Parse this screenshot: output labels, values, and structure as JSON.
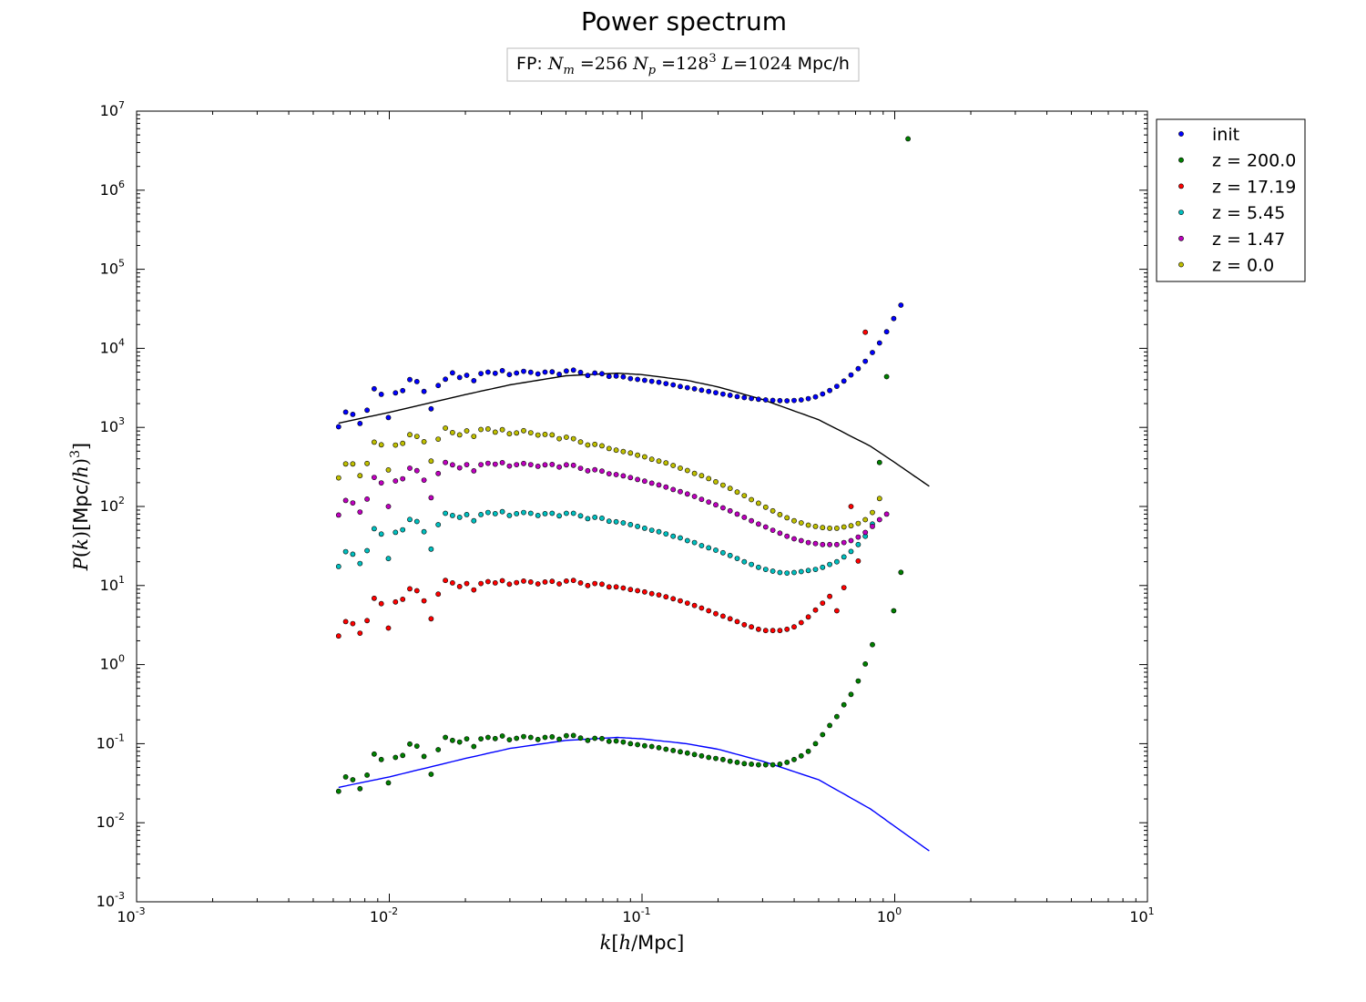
{
  "chart_data": {
    "type": "scatter",
    "title": "Power spectrum",
    "subtitle": {
      "prefix": "FP:",
      "nm_value": "256",
      "np_base": "128",
      "np_exp": "3",
      "L_value": "1024",
      "unit": "Mpc/h"
    },
    "xlabel": {
      "k": "k",
      "h": "h",
      "unit": "Mpc"
    },
    "ylabel": {
      "P": "P",
      "k": "k",
      "unit": "Mpc",
      "h": "h",
      "exp": "3"
    },
    "xscale": "log",
    "yscale": "log",
    "xlim": [
      0.001,
      10
    ],
    "ylim": [
      0.001,
      10000000
    ],
    "xticks": [
      {
        "base": "10",
        "exp": "-3",
        "value": 0.001
      },
      {
        "base": "10",
        "exp": "-2",
        "value": 0.01
      },
      {
        "base": "10",
        "exp": "-1",
        "value": 0.1
      },
      {
        "base": "10",
        "exp": "0",
        "value": 1
      },
      {
        "base": "10",
        "exp": "1",
        "value": 10
      }
    ],
    "yticks": [
      {
        "base": "10",
        "exp": "-3",
        "value": 0.001
      },
      {
        "base": "10",
        "exp": "-2",
        "value": 0.01
      },
      {
        "base": "10",
        "exp": "-1",
        "value": 0.1
      },
      {
        "base": "10",
        "exp": "0",
        "value": 1
      },
      {
        "base": "10",
        "exp": "1",
        "value": 10
      },
      {
        "base": "10",
        "exp": "2",
        "value": 100
      },
      {
        "base": "10",
        "exp": "3",
        "value": 1000
      },
      {
        "base": "10",
        "exp": "4",
        "value": 10000
      },
      {
        "base": "10",
        "exp": "5",
        "value": 100000
      },
      {
        "base": "10",
        "exp": "6",
        "value": 1000000
      },
      {
        "base": "10",
        "exp": "7",
        "value": 10000000
      }
    ],
    "grid": false,
    "legend_placement": "outside-top-right",
    "series": [
      {
        "name": "init",
        "color": "#0000ff",
        "legend_marker": "dot",
        "values": [
          1020,
          1560,
          1460,
          1120,
          1650,
          3080,
          2620,
          1330,
          2730,
          2920,
          4030,
          3800,
          2850,
          1720,
          3390,
          4070,
          4900,
          4280,
          4560,
          3900,
          4790,
          5010,
          4830,
          5220,
          4660,
          4870,
          5130,
          4980,
          4740,
          5000,
          5050,
          4700,
          5160,
          5310,
          4960,
          4540,
          4870,
          4770,
          4420,
          4470,
          4360,
          4150,
          4050,
          3940,
          3830,
          3730,
          3580,
          3450,
          3290,
          3180,
          3080,
          2960,
          2850,
          2750,
          2640,
          2550,
          2450,
          2380,
          2320,
          2270,
          2230,
          2200,
          2180,
          2170,
          2190,
          2230,
          2310,
          2430,
          2650,
          2930,
          3310,
          3860,
          4610,
          5540,
          6870,
          8850,
          11700,
          16200,
          23800,
          35200
        ]
      },
      {
        "name": "z = 200.0",
        "color": "#008000",
        "legend_marker": "dot",
        "values": [
          0.025,
          0.038,
          0.035,
          0.027,
          0.04,
          0.074,
          0.063,
          0.032,
          0.067,
          0.071,
          0.099,
          0.093,
          0.069,
          0.041,
          0.084,
          0.12,
          0.11,
          0.105,
          0.115,
          0.092,
          0.115,
          0.12,
          0.116,
          0.125,
          0.112,
          0.117,
          0.123,
          0.12,
          0.113,
          0.12,
          0.122,
          0.114,
          0.126,
          0.127,
          0.118,
          0.11,
          0.117,
          0.116,
          0.107,
          0.108,
          0.105,
          0.1,
          0.097,
          0.094,
          0.092,
          0.089,
          0.085,
          0.082,
          0.079,
          0.076,
          0.073,
          0.07,
          0.067,
          0.065,
          0.063,
          0.06,
          0.058,
          0.056,
          0.055,
          0.054,
          0.054,
          0.054,
          0.055,
          0.058,
          0.063,
          0.07,
          0.08,
          0.1,
          0.13,
          0.17,
          0.22,
          0.31,
          0.42,
          0.62,
          1.02,
          1.79,
          360,
          4380,
          4.8,
          14.7,
          4470000
        ]
      },
      {
        "name": "z = 17.19",
        "color": "#ff0000",
        "legend_marker": "dot",
        "values": [
          2.3,
          3.5,
          3.3,
          2.5,
          3.6,
          6.9,
          5.9,
          2.9,
          6.2,
          6.7,
          9.1,
          8.6,
          6.4,
          3.8,
          7.8,
          11.6,
          10.8,
          9.7,
          10.6,
          8.8,
          10.6,
          11.2,
          10.8,
          11.5,
          10.4,
          10.9,
          11.4,
          11.1,
          10.5,
          11.1,
          11.3,
          10.5,
          11.4,
          11.6,
          10.8,
          10.0,
          10.6,
          10.4,
          9.6,
          9.6,
          9.3,
          8.9,
          8.6,
          8.3,
          7.9,
          7.6,
          7.2,
          6.8,
          6.4,
          6.0,
          5.6,
          5.2,
          4.8,
          4.4,
          4.1,
          3.8,
          3.5,
          3.2,
          3.0,
          2.8,
          2.7,
          2.7,
          2.7,
          2.8,
          3.0,
          3.4,
          4.0,
          4.9,
          6.0,
          7.3,
          4.8,
          9.4,
          100,
          20.4,
          16000
        ]
      },
      {
        "name": "z = 5.45",
        "color": "#00bfbf",
        "legend_marker": "dot",
        "values": [
          17.4,
          26.8,
          24.9,
          19.0,
          27.6,
          52.3,
          44.8,
          21.9,
          47.1,
          50.7,
          68.5,
          64.5,
          48.0,
          28.9,
          58.8,
          82.0,
          77.0,
          73.0,
          79.0,
          66.0,
          79.0,
          84.0,
          81.0,
          86.0,
          77.0,
          81.0,
          84.0,
          82.0,
          77.0,
          81.0,
          82.0,
          76.0,
          82.0,
          82.0,
          76.0,
          70.0,
          73.0,
          71.0,
          65.0,
          64.0,
          62.0,
          59.0,
          56.0,
          53.0,
          50.0,
          48.0,
          45.0,
          42.0,
          40.0,
          37.0,
          35.0,
          32.0,
          30.0,
          28.0,
          26.0,
          24.0,
          22.0,
          20.0,
          18.5,
          17.0,
          16.0,
          15.2,
          14.6,
          14.4,
          14.6,
          15.0,
          15.5,
          16.0,
          17.0,
          18.5,
          20.0,
          23.0,
          27.0,
          33.0,
          42.0,
          60.0
        ]
      },
      {
        "name": "z = 1.47",
        "color": "#bf00bf",
        "legend_marker": "dot",
        "values": [
          78,
          119,
          111,
          85,
          124,
          233,
          199,
          100,
          210,
          224,
          305,
          284,
          215,
          129,
          261,
          360,
          336,
          308,
          338,
          282,
          338,
          352,
          342,
          358,
          325,
          338,
          350,
          338,
          322,
          336,
          340,
          315,
          336,
          332,
          304,
          283,
          291,
          280,
          259,
          253,
          244,
          232,
          219,
          209,
          197,
          187,
          176,
          164,
          154,
          144,
          134,
          123,
          114,
          105,
          96,
          88,
          80,
          73,
          66,
          60,
          55,
          50,
          46,
          42,
          39,
          37,
          35,
          34,
          33,
          33,
          33,
          35,
          37,
          41,
          47,
          56,
          68,
          80
        ]
      },
      {
        "name": "z = 0.0",
        "color": "#bfbf00",
        "legend_marker": "dot",
        "values": [
          230,
          345,
          345,
          245,
          350,
          650,
          602,
          290,
          598,
          628,
          808,
          770,
          660,
          375,
          710,
          980,
          860,
          805,
          905,
          770,
          940,
          955,
          870,
          935,
          830,
          850,
          910,
          855,
          800,
          815,
          805,
          720,
          750,
          720,
          655,
          600,
          610,
          585,
          540,
          515,
          495,
          475,
          445,
          425,
          395,
          375,
          355,
          330,
          305,
          285,
          262,
          245,
          225,
          205,
          186,
          169,
          152,
          137,
          122,
          110,
          98,
          88,
          79,
          72,
          66,
          62,
          58,
          56,
          54,
          53,
          53,
          55,
          57,
          61,
          68,
          84,
          126
        ]
      }
    ],
    "lines": [
      {
        "color": "#000000",
        "x": [
          0.0063,
          0.01,
          0.02,
          0.03,
          0.05,
          0.08,
          0.1,
          0.15,
          0.2,
          0.3,
          0.5,
          0.8,
          1.0,
          1.37
        ],
        "y": [
          1130,
          1550,
          2600,
          3450,
          4500,
          4850,
          4650,
          3950,
          3250,
          2250,
          1250,
          580,
          360,
          180
        ]
      },
      {
        "color": "#0000ff",
        "x": [
          0.0063,
          0.01,
          0.02,
          0.03,
          0.05,
          0.08,
          0.1,
          0.15,
          0.2,
          0.3,
          0.5,
          0.8,
          1.0,
          1.37
        ],
        "y": [
          0.028,
          0.038,
          0.065,
          0.087,
          0.11,
          0.12,
          0.115,
          0.1,
          0.085,
          0.06,
          0.035,
          0.015,
          0.009,
          0.0044
        ]
      }
    ]
  }
}
